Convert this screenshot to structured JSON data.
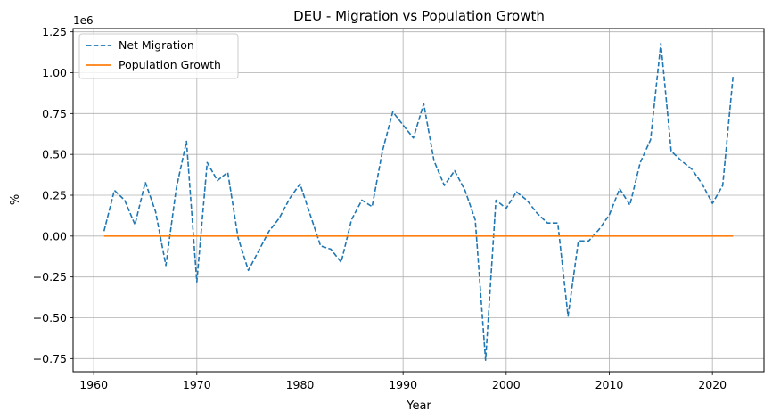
{
  "chart_data": {
    "type": "line",
    "title": "DEU - Migration vs Population Growth",
    "xlabel": "Year",
    "ylabel": "%",
    "offset_text": "1e6",
    "xlim": [
      1958,
      2025
    ],
    "ylim": [
      -0.83,
      1.27
    ],
    "xticks": [
      1960,
      1970,
      1980,
      1990,
      2000,
      2010,
      2020
    ],
    "xtick_labels": [
      "1960",
      "1970",
      "1980",
      "1990",
      "2000",
      "2010",
      "2020"
    ],
    "yticks": [
      -0.75,
      -0.5,
      -0.25,
      0.0,
      0.25,
      0.5,
      0.75,
      1.0,
      1.25
    ],
    "ytick_labels": [
      "−0.75",
      "−0.50",
      "−0.25",
      "0.00",
      "0.25",
      "0.50",
      "0.75",
      "1.00",
      "1.25"
    ],
    "grid": true,
    "legend_position": "top-left",
    "x": [
      1961,
      1962,
      1963,
      1964,
      1965,
      1966,
      1967,
      1968,
      1969,
      1970,
      1971,
      1972,
      1973,
      1974,
      1975,
      1976,
      1977,
      1978,
      1979,
      1980,
      1981,
      1982,
      1983,
      1984,
      1985,
      1986,
      1987,
      1988,
      1989,
      1990,
      1991,
      1992,
      1993,
      1994,
      1995,
      1996,
      1997,
      1998,
      1999,
      2000,
      2001,
      2002,
      2003,
      2004,
      2005,
      2006,
      2007,
      2008,
      2009,
      2010,
      2011,
      2012,
      2013,
      2014,
      2015,
      2016,
      2017,
      2018,
      2019,
      2020,
      2021,
      2022
    ],
    "series": [
      {
        "name": "Net Migration",
        "color": "#1f77b4",
        "style": "dashed",
        "values": [
          0.03,
          0.28,
          0.22,
          0.07,
          0.33,
          0.15,
          -0.18,
          0.29,
          0.58,
          -0.28,
          0.45,
          0.34,
          0.39,
          -0.01,
          -0.21,
          -0.09,
          0.03,
          0.11,
          0.23,
          0.32,
          0.13,
          -0.06,
          -0.08,
          -0.16,
          0.1,
          0.22,
          0.18,
          0.52,
          0.76,
          0.68,
          0.6,
          0.81,
          0.46,
          0.31,
          0.4,
          0.28,
          0.1,
          -0.76,
          0.22,
          0.17,
          0.27,
          0.22,
          0.14,
          0.08,
          0.08,
          -0.49,
          -0.03,
          -0.03,
          0.04,
          0.13,
          0.29,
          0.19,
          0.45,
          0.59,
          1.18,
          0.52,
          0.46,
          0.41,
          0.32,
          0.2,
          0.31,
          0.98
        ]
      },
      {
        "name": "Population Growth",
        "color": "#ff7f0e",
        "style": "solid",
        "values": [
          0,
          0,
          0,
          0,
          0,
          0,
          0,
          0,
          0,
          0,
          0,
          0,
          0,
          0,
          0,
          0,
          0,
          0,
          0,
          0,
          0,
          0,
          0,
          0,
          0,
          0,
          0,
          0,
          0,
          0,
          0,
          0,
          0,
          0,
          0,
          0,
          0,
          0,
          0,
          0,
          0,
          0,
          0,
          0,
          0,
          0,
          0,
          0,
          0,
          0,
          0,
          0,
          0,
          0,
          0,
          0,
          0,
          0,
          0,
          0,
          0,
          0
        ]
      }
    ]
  }
}
